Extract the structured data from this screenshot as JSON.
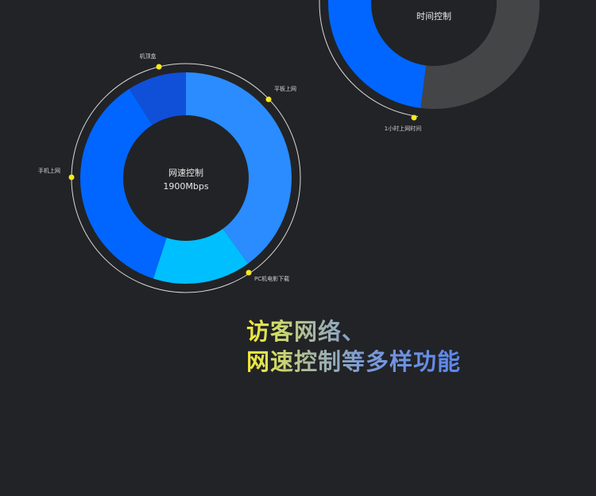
{
  "chart_data": [
    {
      "type": "pie",
      "center_title": "网速控制",
      "center_value": "1900Mbps",
      "categories": [
        "平板上网",
        "PC机电影下载",
        "手机上网",
        "机顶盒"
      ],
      "values": [
        40,
        15,
        36,
        9
      ],
      "colors": [
        "#2a8cff",
        "#00bfff",
        "#0066ff",
        "#1050d8"
      ]
    },
    {
      "type": "pie",
      "center_title": "时间控制",
      "categories": [
        "",
        "1小时上网时间"
      ],
      "values": [
        52,
        48
      ],
      "colors": [
        "#444547",
        "#0066ff"
      ]
    }
  ],
  "headline": {
    "line1": "访客网络、",
    "line2": "网速控制等多样功能"
  },
  "colors": {
    "background": "#222326",
    "marker": "#f7ea1c",
    "ring": "#d8d8d8"
  }
}
